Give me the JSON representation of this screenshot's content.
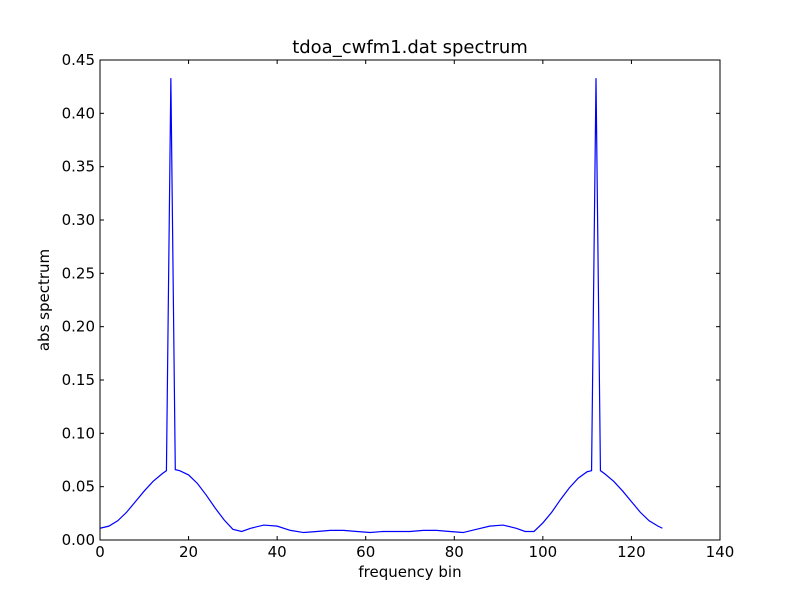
{
  "chart_data": {
    "type": "line",
    "title": "tdoa_cwfm1.dat spectrum",
    "xlabel": "frequency bin",
    "ylabel": "abs spectrum",
    "xlim": [
      0,
      140
    ],
    "ylim": [
      0,
      0.45
    ],
    "xticks": [
      0,
      20,
      40,
      60,
      80,
      100,
      120,
      140
    ],
    "yticks": [
      0.0,
      0.05,
      0.1,
      0.15,
      0.2,
      0.25,
      0.3,
      0.35,
      0.4,
      0.45
    ],
    "xtick_labels": [
      "0",
      "20",
      "40",
      "60",
      "80",
      "100",
      "120",
      "140"
    ],
    "ytick_labels": [
      "0.00",
      "0.05",
      "0.10",
      "0.15",
      "0.20",
      "0.25",
      "0.30",
      "0.35",
      "0.40",
      "0.45"
    ],
    "grid": false,
    "series": [
      {
        "color": "#0000ff",
        "x": [
          0,
          2,
          4,
          6,
          8,
          10,
          12,
          14,
          15,
          16,
          17,
          18,
          20,
          22,
          24,
          26,
          28,
          30,
          32,
          34,
          37,
          40,
          43,
          46,
          49,
          52,
          55,
          58,
          61,
          64,
          67,
          70,
          73,
          76,
          79,
          82,
          85,
          88,
          91,
          94,
          96,
          98,
          100,
          102,
          104,
          106,
          108,
          110,
          111,
          112,
          113,
          114,
          116,
          118,
          120,
          122,
          124,
          126,
          127
        ],
        "y": [
          0.011,
          0.013,
          0.018,
          0.026,
          0.036,
          0.046,
          0.055,
          0.062,
          0.065,
          0.433,
          0.066,
          0.065,
          0.061,
          0.053,
          0.042,
          0.03,
          0.019,
          0.01,
          0.008,
          0.011,
          0.014,
          0.013,
          0.009,
          0.007,
          0.008,
          0.009,
          0.009,
          0.008,
          0.007,
          0.008,
          0.008,
          0.008,
          0.009,
          0.009,
          0.008,
          0.007,
          0.01,
          0.013,
          0.014,
          0.011,
          0.008,
          0.008,
          0.016,
          0.026,
          0.038,
          0.049,
          0.058,
          0.064,
          0.065,
          0.433,
          0.065,
          0.062,
          0.055,
          0.046,
          0.036,
          0.026,
          0.018,
          0.013,
          0.011
        ]
      }
    ]
  }
}
